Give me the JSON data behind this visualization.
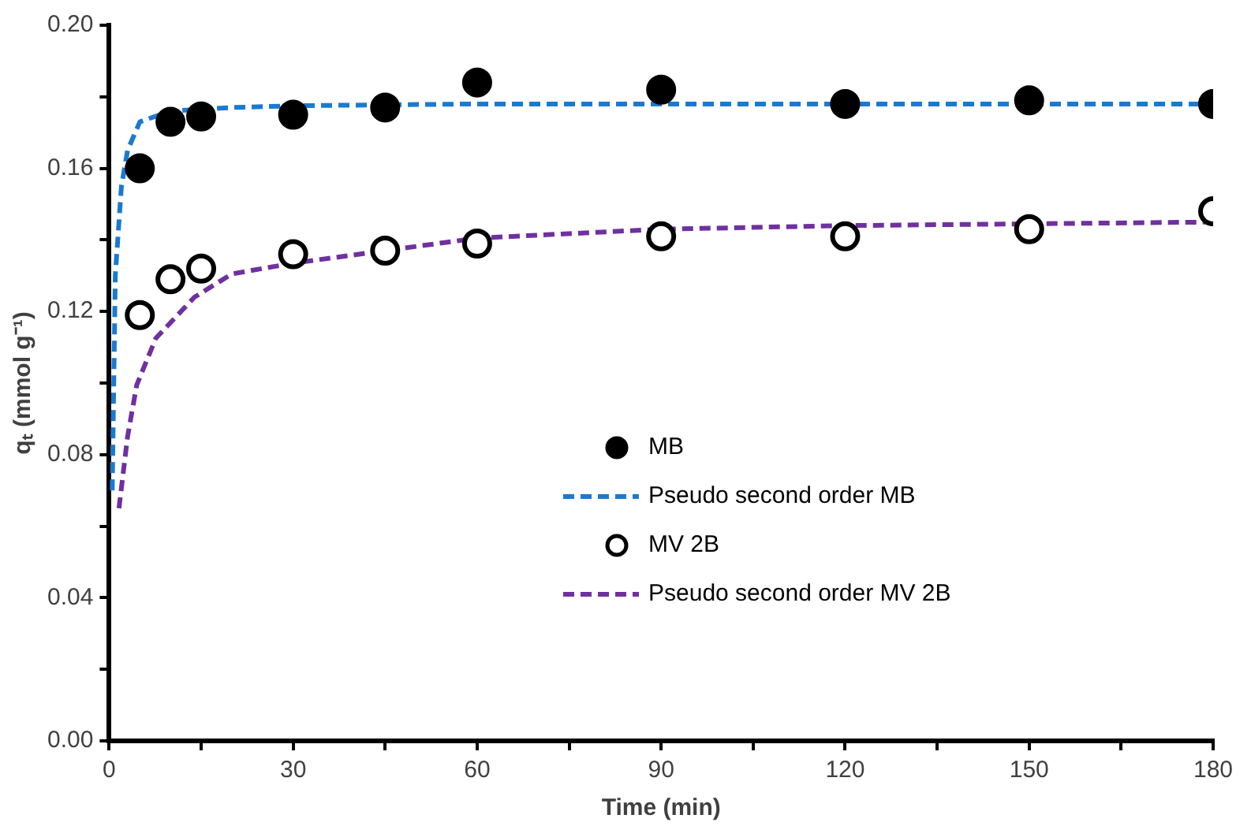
{
  "chart_data": {
    "type": "scatter",
    "xlabel": "Time (min)",
    "ylabel": "qₜ (mmol g⁻¹)",
    "xlim": [
      0,
      180
    ],
    "ylim": [
      0,
      0.2
    ],
    "xticks": [
      0,
      {
        "value": 15,
        "label": null
      },
      30,
      {
        "value": 45,
        "label": null
      },
      60,
      {
        "value": 75,
        "label": null
      },
      90,
      {
        "value": 105,
        "label": null
      },
      120,
      {
        "value": 135,
        "label": null
      },
      150,
      {
        "value": 165,
        "label": null
      },
      180
    ],
    "yticks": [
      {
        "value": 0,
        "label": "0.00"
      },
      {
        "value": 0.02,
        "label": null
      },
      {
        "value": 0.04,
        "label": "0.04"
      },
      {
        "value": 0.06,
        "label": null
      },
      {
        "value": 0.08,
        "label": "0.08"
      },
      {
        "value": 0.1,
        "label": null
      },
      {
        "value": 0.12,
        "label": "0.12"
      },
      {
        "value": 0.14,
        "label": null
      },
      {
        "value": 0.16,
        "label": "0.16"
      },
      {
        "value": 0.18,
        "label": null
      },
      {
        "value": 0.2,
        "label": "0.20"
      }
    ],
    "legend": "right",
    "grid": false,
    "series": [
      {
        "name": "MB",
        "type": "scatter",
        "marker": "circle",
        "color": "#000000",
        "x": [
          5,
          10,
          15,
          30,
          45,
          60,
          90,
          120,
          150,
          180
        ],
        "values": [
          0.16,
          0.173,
          0.1745,
          0.175,
          0.177,
          0.184,
          0.182,
          0.178,
          0.179,
          0.178
        ]
      },
      {
        "name": "Pseudo second order MB",
        "type": "line",
        "marker": "none",
        "line_style": "dashed",
        "color": "#1a7ad0",
        "x": [
          0.5,
          1,
          2,
          3,
          5,
          10,
          20,
          30,
          60,
          90,
          120,
          150,
          180
        ],
        "values": [
          0.07,
          0.13,
          0.155,
          0.165,
          0.173,
          0.176,
          0.177,
          0.1775,
          0.178,
          0.178,
          0.178,
          0.178,
          0.178
        ]
      },
      {
        "name": "MV 2B",
        "type": "scatter",
        "marker": "circle",
        "color": "#ffffff",
        "x": [
          5,
          10,
          15,
          30,
          45,
          60,
          90,
          120,
          150,
          180
        ],
        "values": [
          0.119,
          0.129,
          0.132,
          0.136,
          0.137,
          0.139,
          0.141,
          0.141,
          0.143,
          0.148
        ]
      },
      {
        "name": "Pseudo second order MV 2B",
        "type": "line",
        "marker": "none",
        "line_style": "dashed",
        "color": "#7030a0",
        "x": [
          1.6,
          3,
          4.5,
          7.6,
          13.9,
          20,
          30,
          45,
          60,
          90,
          120,
          150,
          180
        ],
        "values": [
          0.065,
          0.085,
          0.0995,
          0.1125,
          0.124,
          0.1305,
          0.1335,
          0.137,
          0.1405,
          0.143,
          0.144,
          0.1445,
          0.145
        ]
      }
    ]
  }
}
